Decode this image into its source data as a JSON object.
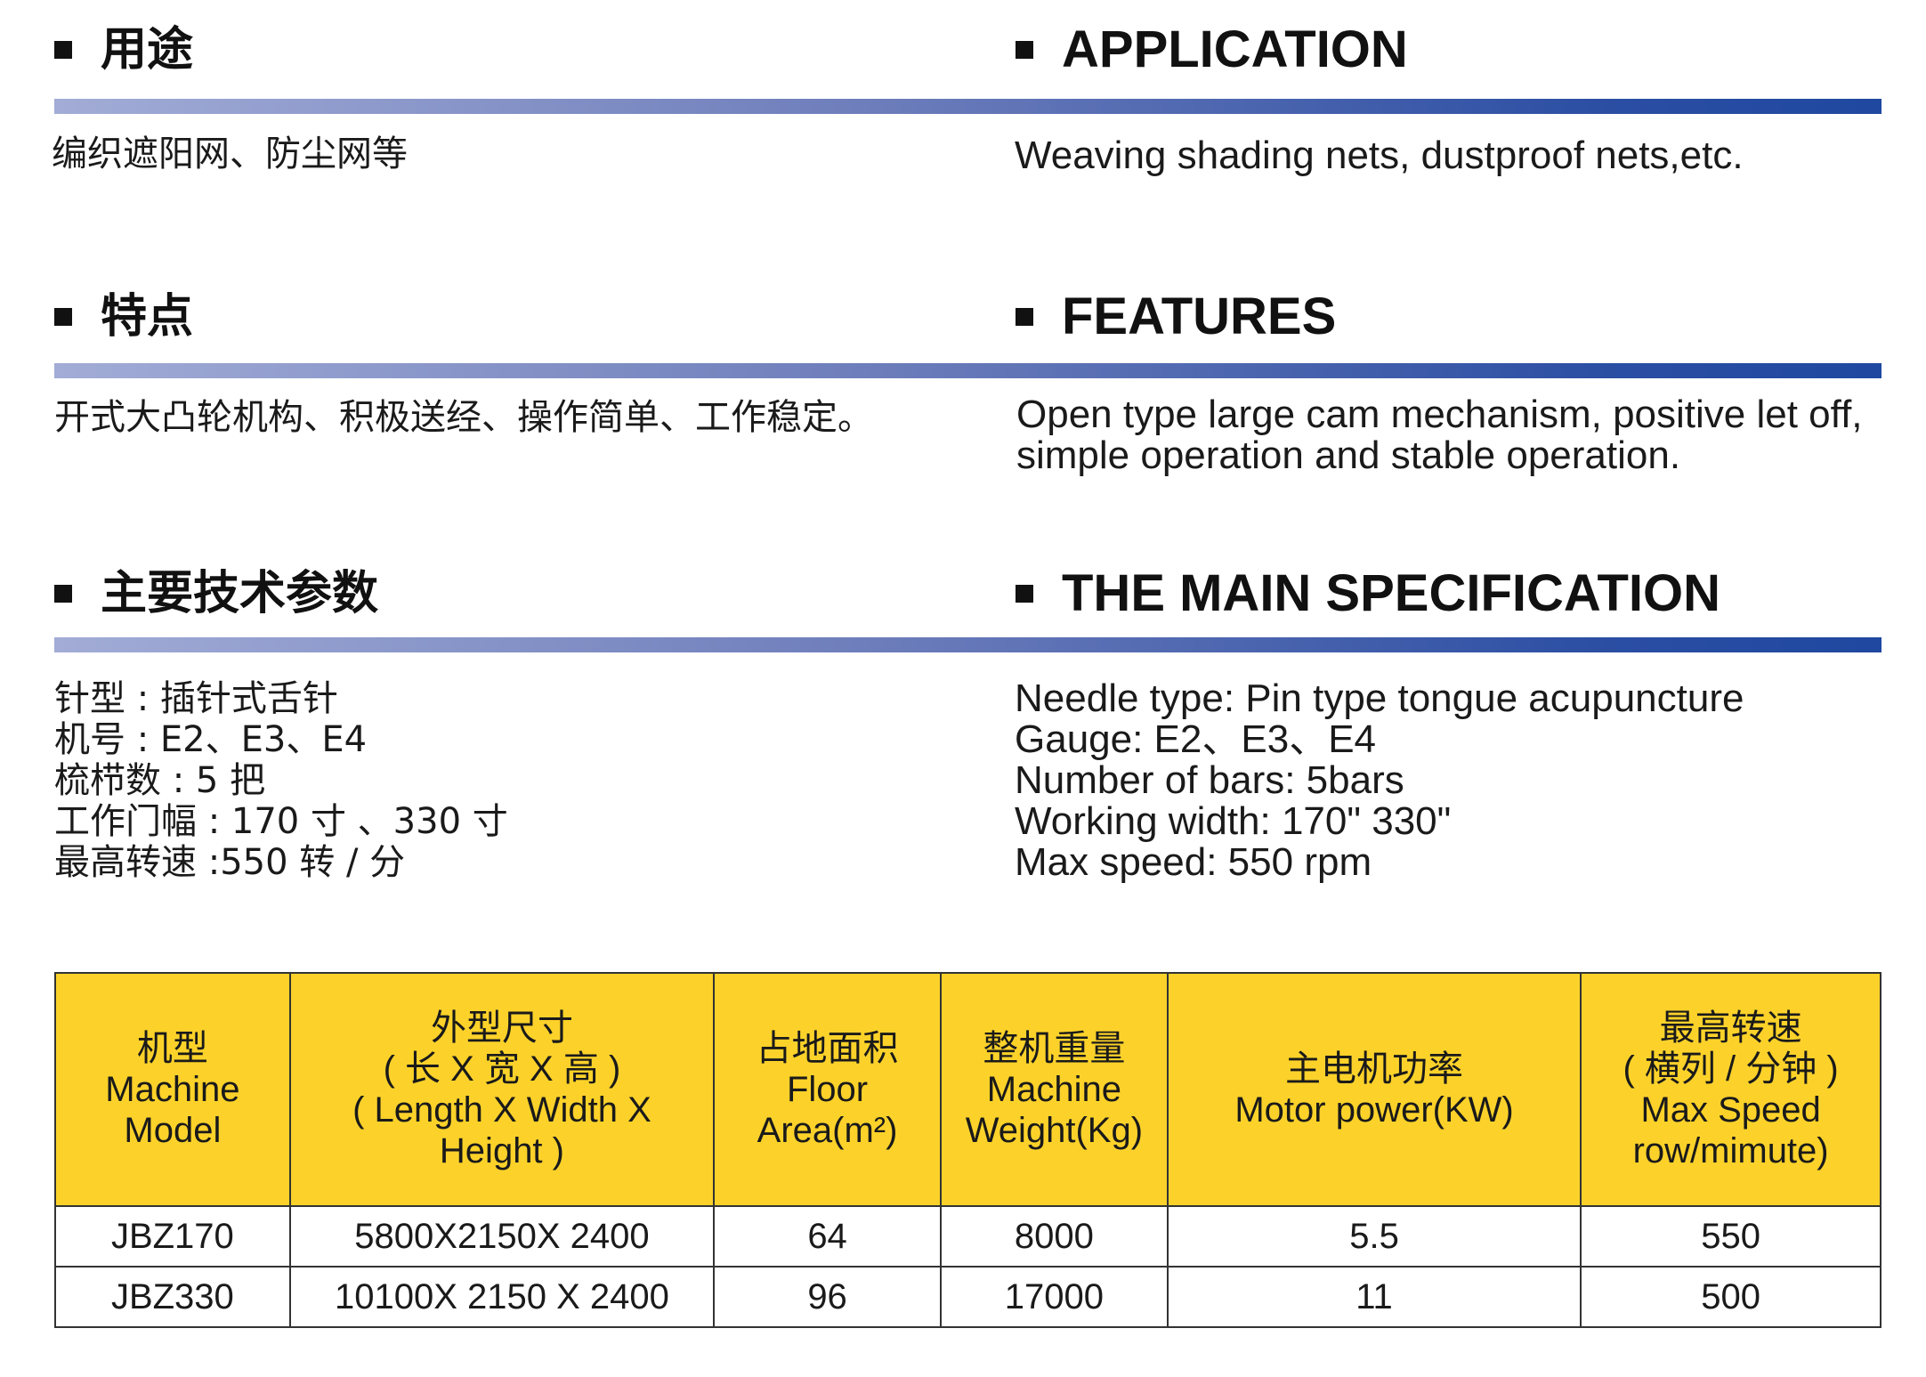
{
  "sections": [
    {
      "title_cn": "用途",
      "title_en": "APPLICATION",
      "text_cn": [
        "编织遮阳网、防尘网等"
      ],
      "text_en": [
        "Weaving shading nets, dustproof nets,etc."
      ]
    },
    {
      "title_cn": "特点",
      "title_en": "FEATURES",
      "text_cn": [
        "开式大凸轮机构、积极送经、操作简单、工作稳定。"
      ],
      "text_en": [
        "Open type large cam mechanism, positive let off,",
        "simple operation and stable operation."
      ]
    },
    {
      "title_cn": "主要技术参数",
      "title_en": "THE MAIN SPECIFICATION",
      "text_cn": [
        "针型 : 插针式舌针",
        "机号 : E2、E3、E4",
        "梳栉数 : 5 把",
        "工作门幅 : 170 寸 、330 寸",
        "最高转速 :550 转 / 分"
      ],
      "text_en": [
        "Needle type: Pin type tongue acupuncture",
        "Gauge: E2、E3、E4",
        "Number of bars: 5bars",
        "Working width: 170\" 330\"",
        "Max speed: 550 rpm"
      ]
    }
  ],
  "table": {
    "headers": [
      [
        "机型",
        "Machine",
        "Model"
      ],
      [
        "外型尺寸",
        "( 长 X 宽 X 高 )",
        "( Length X Width X",
        "Height )"
      ],
      [
        "占地面积",
        "Floor",
        "Area(m²)"
      ],
      [
        "整机重量",
        "Machine",
        "Weight(Kg)"
      ],
      [
        "主电机功率",
        "Motor power(KW)"
      ],
      [
        "最高转速",
        "( 横列 / 分钟 )",
        "Max Speed",
        "row/mimute)"
      ]
    ],
    "rows": [
      [
        "JBZ170",
        "5800X2150X 2400",
        "64",
        "8000",
        "5.5",
        "550"
      ],
      [
        "JBZ330",
        "10100X 2150 X 2400",
        "96",
        "17000",
        "11",
        "500"
      ]
    ]
  },
  "colors": {
    "header_fill": "#fcd22a",
    "bar_start": "#a2acd6",
    "bar_end": "#1f48a0"
  }
}
